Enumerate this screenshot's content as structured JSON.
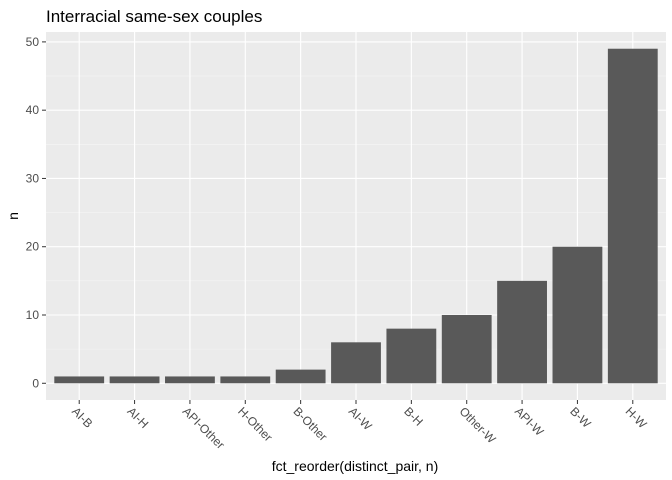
{
  "chart_data": {
    "type": "bar",
    "title": "Interracial same-sex couples",
    "xlabel": "fct_reorder(distinct_pair, n)",
    "ylabel": "n",
    "categories": [
      "AI-B",
      "AI-H",
      "API-Other",
      "H-Other",
      "B-Other",
      "AI-W",
      "B-H",
      "Other-W",
      "API-W",
      "B-W",
      "H-W"
    ],
    "values": [
      1,
      1,
      1,
      1,
      2,
      6,
      8,
      10,
      15,
      20,
      49
    ],
    "ylim": [
      -2.45,
      51.45
    ],
    "yticks": [
      0,
      10,
      20,
      30,
      40,
      50
    ],
    "grid": true,
    "colors": {
      "bar": "#595959",
      "panel": "#ebebeb",
      "grid_major": "#ffffff",
      "grid_minor": "#f5f5f5"
    }
  }
}
